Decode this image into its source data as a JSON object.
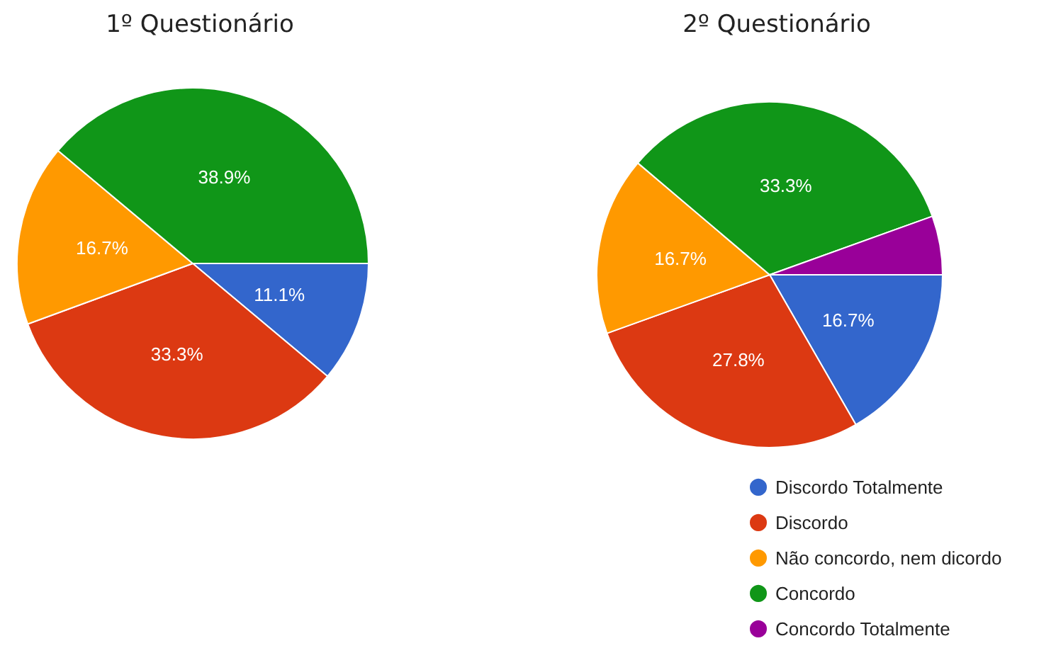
{
  "chart_data": [
    {
      "type": "pie",
      "title": "1º Questionário",
      "categories": [
        null,
        null,
        null,
        null
      ],
      "values": [
        11.1,
        33.3,
        16.7,
        38.9
      ],
      "value_labels": [
        "11.1%",
        "33.3%",
        "16.7%",
        "38.9%"
      ],
      "colors": [
        "#3366cc",
        "#dc3912",
        "#ff9900",
        "#109618"
      ],
      "legend": false
    },
    {
      "type": "pie",
      "title": "2º Questionário",
      "categories": [
        "Discordo Totalmente",
        "Discordo",
        "Não concordo, nem dicordo",
        "Concordo",
        "Concordo Totalmente"
      ],
      "values": [
        16.7,
        27.8,
        16.7,
        33.3,
        5.5
      ],
      "value_labels": [
        "16.7%",
        "27.8%",
        "16.7%",
        "33.3%",
        null
      ],
      "colors": [
        "#3366cc",
        "#dc3912",
        "#ff9900",
        "#109618",
        "#990099"
      ],
      "legend": "bottom right"
    }
  ]
}
